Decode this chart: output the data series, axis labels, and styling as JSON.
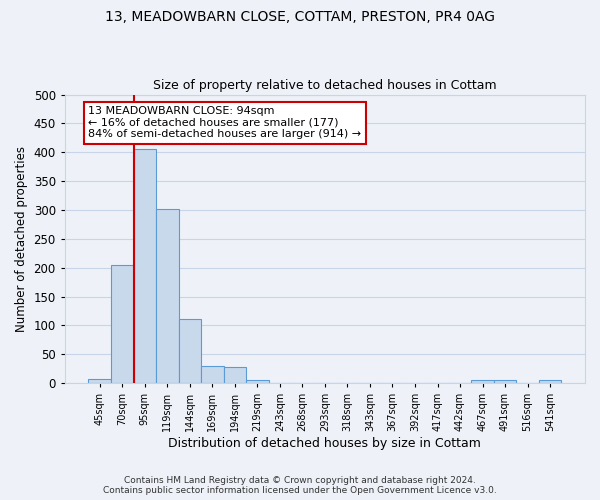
{
  "title1": "13, MEADOWBARN CLOSE, COTTAM, PRESTON, PR4 0AG",
  "title2": "Size of property relative to detached houses in Cottam",
  "xlabel": "Distribution of detached houses by size in Cottam",
  "ylabel": "Number of detached properties",
  "bin_labels": [
    "45sqm",
    "70sqm",
    "95sqm",
    "119sqm",
    "144sqm",
    "169sqm",
    "194sqm",
    "219sqm",
    "243sqm",
    "268sqm",
    "293sqm",
    "318sqm",
    "343sqm",
    "367sqm",
    "392sqm",
    "417sqm",
    "442sqm",
    "467sqm",
    "491sqm",
    "516sqm",
    "541sqm"
  ],
  "bar_heights": [
    8,
    205,
    405,
    302,
    112,
    30,
    28,
    6,
    0,
    0,
    0,
    0,
    0,
    0,
    0,
    0,
    0,
    5,
    6,
    0,
    6
  ],
  "bar_color": "#c9d9ec",
  "bar_edge_color": "#5b9bd5",
  "vline_color": "#cc0000",
  "annotation_text": "13 MEADOWBARN CLOSE: 94sqm\n← 16% of detached houses are smaller (177)\n84% of semi-detached houses are larger (914) →",
  "annotation_box_color": "white",
  "annotation_box_edge_color": "#cc0000",
  "ylim": [
    0,
    500
  ],
  "yticks": [
    0,
    50,
    100,
    150,
    200,
    250,
    300,
    350,
    400,
    450,
    500
  ],
  "footer1": "Contains HM Land Registry data © Crown copyright and database right 2024.",
  "footer2": "Contains public sector information licensed under the Open Government Licence v3.0.",
  "background_color": "#eef2f8",
  "grid_color": "#c8d4e8"
}
